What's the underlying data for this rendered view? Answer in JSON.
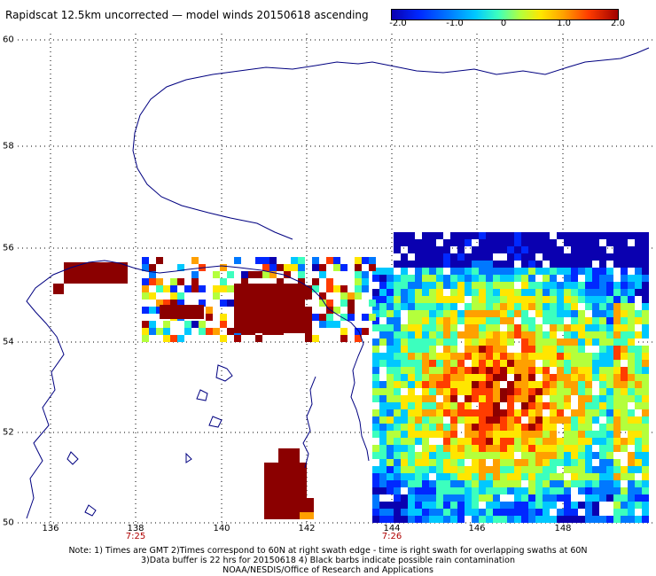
{
  "title": "Rapidscat 12.5km uncorrected — model winds 20150618 ascending",
  "colorbar": {
    "labels": [
      "-2.0",
      "-1.0",
      "0",
      "1.0",
      "2.0"
    ],
    "values": [
      -2.0,
      -1.0,
      0,
      1.0,
      2.0
    ],
    "range": [
      -2.0,
      2.0
    ]
  },
  "map": {
    "lat_range": [
      50,
      60
    ],
    "lon_range": [
      135,
      150
    ],
    "lat_ticks": [
      "50",
      "52",
      "54",
      "56",
      "58",
      "60"
    ],
    "lon_ticks": [
      "136",
      "138",
      "140",
      "142",
      "144",
      "146",
      "148"
    ],
    "time_labels": [
      {
        "lon": 138,
        "text": "7:25"
      },
      {
        "lon": 144,
        "text": "7:26"
      }
    ],
    "gridlines": "dotted"
  },
  "notes": [
    "Note: 1) Times are GMT 2)Times correspond to 60N at right swath edge - time is right swath for overlapping swaths at 60N",
    "3)Data buffer is 22 hrs for 20150618 4) Black barbs indicate possible rain contamination",
    "NOAA/NESDIS/Office of Research and Applications"
  ],
  "colors": {
    "coast": "#000080",
    "dark_red": "#8b0000"
  }
}
